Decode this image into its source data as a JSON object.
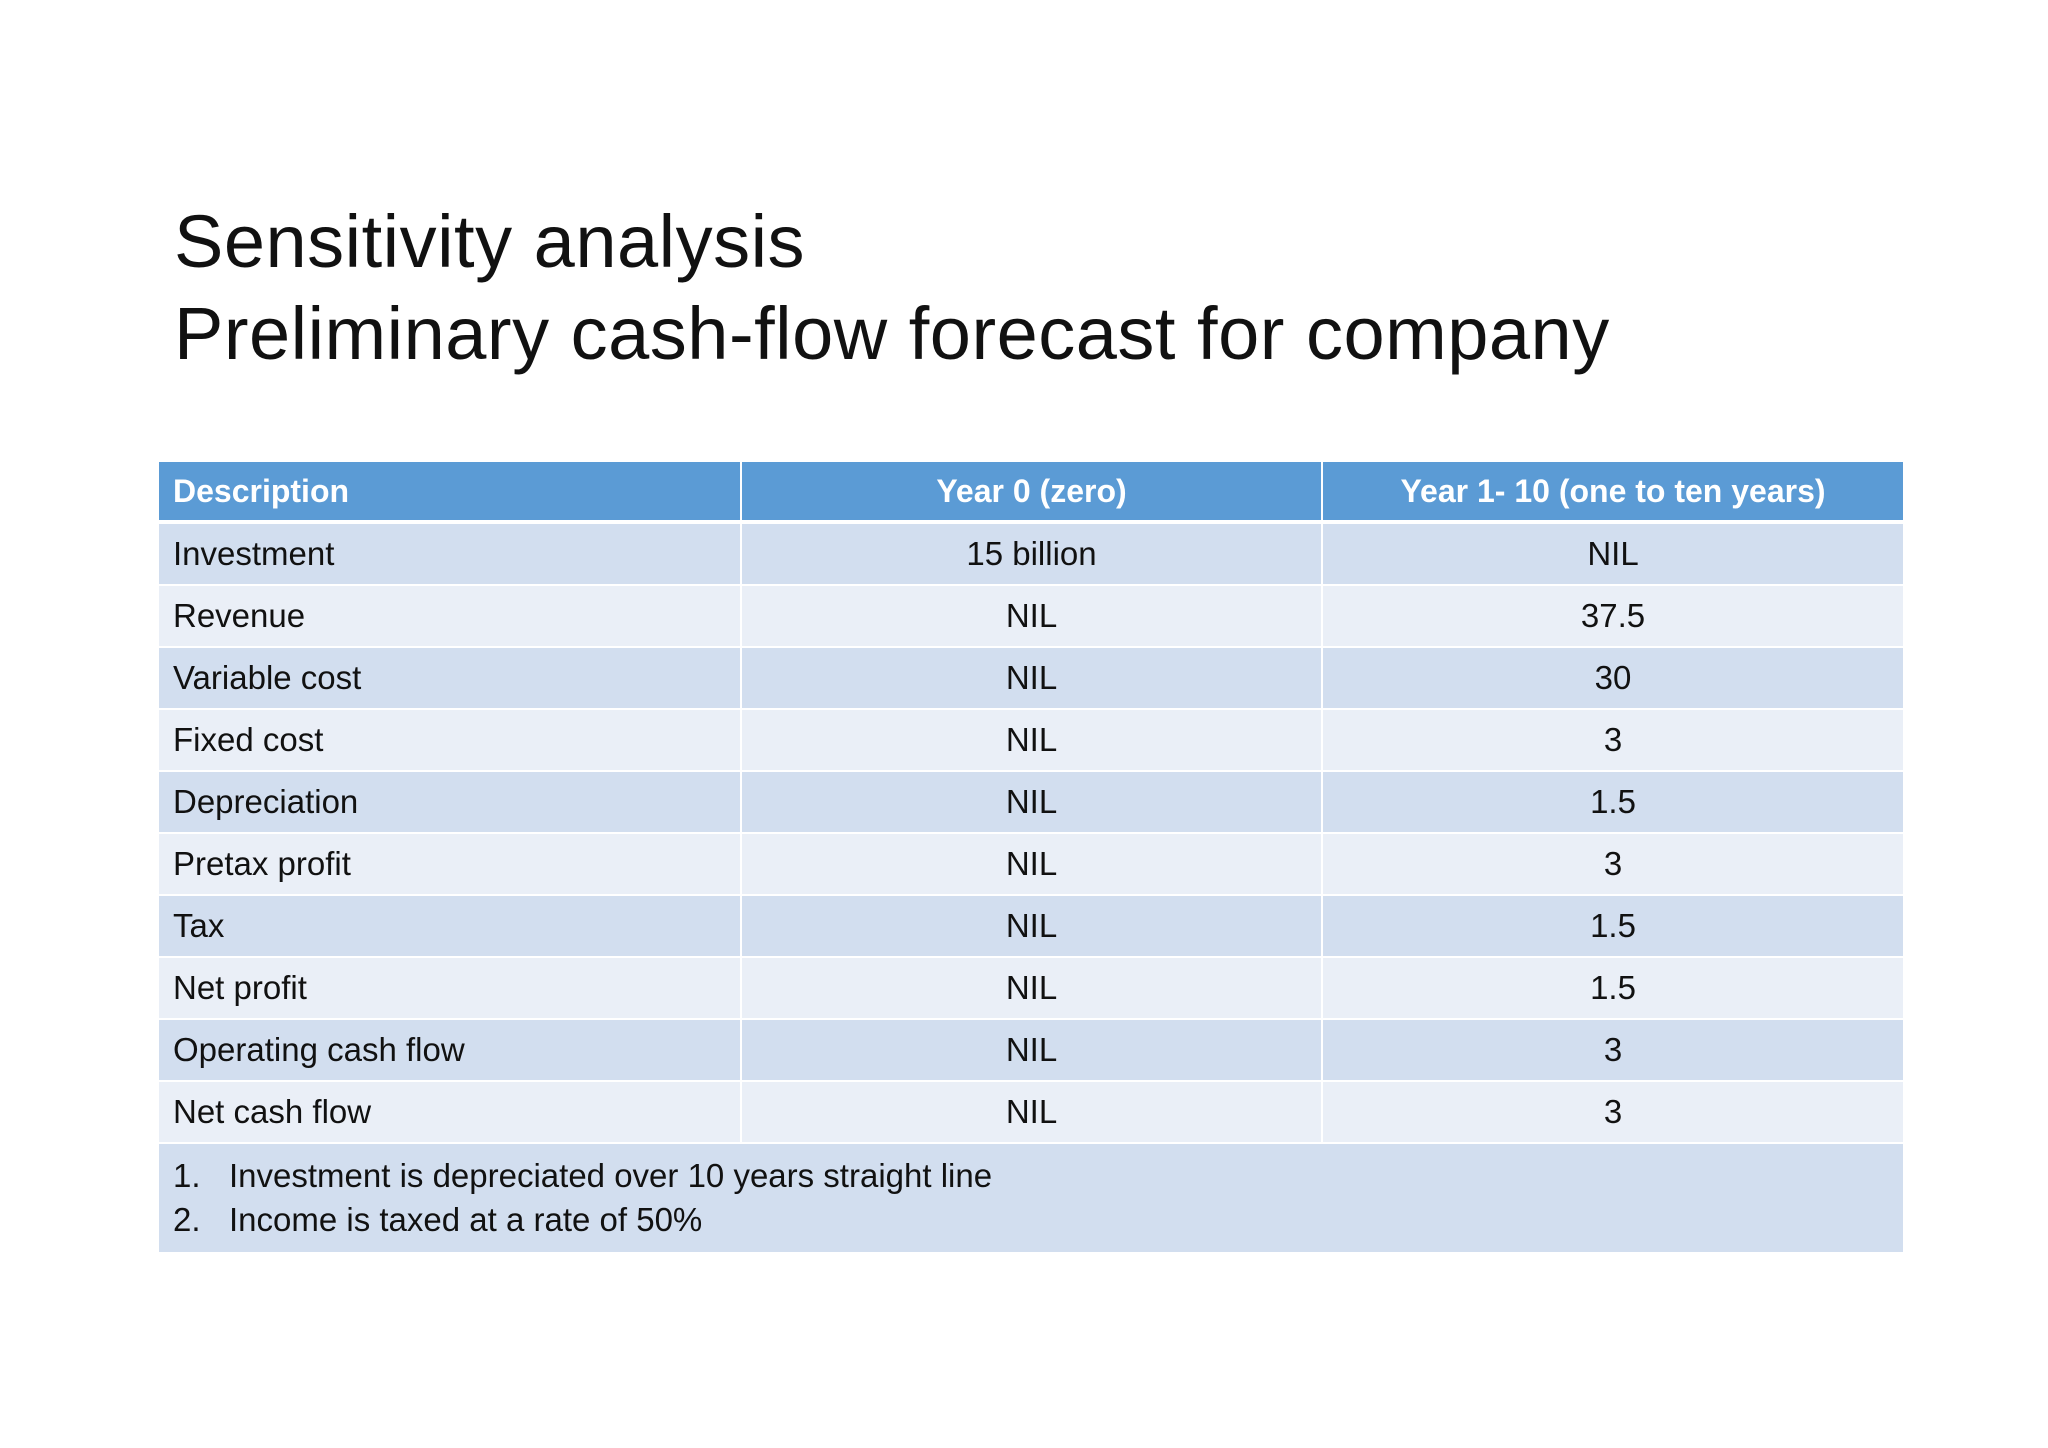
{
  "slide": {
    "title_line1": "Sensitivity analysis",
    "title_line2": "Preliminary cash-flow forecast for company"
  },
  "table": {
    "headers": [
      "Description",
      "Year 0 (zero)",
      "Year 1- 10 (one to ten years)"
    ],
    "rows": [
      [
        "Investment",
        "15 billion",
        "NIL"
      ],
      [
        "Revenue",
        "NIL",
        "37.5"
      ],
      [
        "Variable cost",
        "NIL",
        "30"
      ],
      [
        "Fixed cost",
        "NIL",
        "3"
      ],
      [
        "Depreciation",
        "NIL",
        "1.5"
      ],
      [
        "Pretax profit",
        "NIL",
        "3"
      ],
      [
        "Tax",
        "NIL",
        "1.5"
      ],
      [
        "Net profit",
        "NIL",
        "1.5"
      ],
      [
        "Operating cash flow",
        "NIL",
        "3"
      ],
      [
        "Net cash flow",
        "NIL",
        "3"
      ]
    ],
    "notes": [
      {
        "num": "1.",
        "text": "Investment is depreciated over 10 years straight line"
      },
      {
        "num": "2.",
        "text": "Income is taxed at a rate of 50%"
      }
    ]
  },
  "colors": {
    "header_bg": "#5b9bd5",
    "row_odd_bg": "#d2deef",
    "row_even_bg": "#eaeff7"
  }
}
